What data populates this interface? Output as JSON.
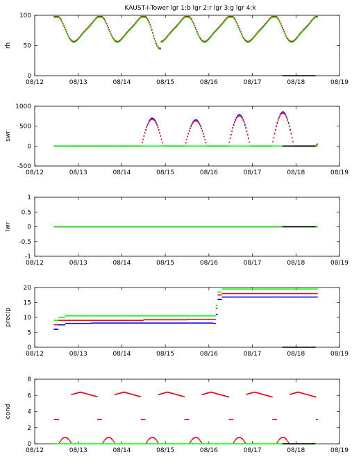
{
  "title": "KAUST-I-Tower  lgr 1:b lgr 2:r lgr 3:g lgr 4:k",
  "colors": {
    "lgr1": "#0000ff",
    "lgr2": "#ff0000",
    "lgr3": "#00ff00",
    "lgr4": "#000000"
  },
  "chart_data": [
    {
      "type": "scatter",
      "ylabel": "rh",
      "xlabel": "",
      "xlim": [
        "08/12",
        "08/19"
      ],
      "ylim": [
        0,
        100
      ],
      "xticks": [
        "08/12",
        "08/13",
        "08/14",
        "08/15",
        "08/16",
        "08/17",
        "08/18",
        "08/19"
      ],
      "yticks": [
        "0",
        "50",
        "100"
      ],
      "series": [
        {
          "color": "#0000ff",
          "kind": "diurnal_rh",
          "x_start": 0.45,
          "x_end": 6.5
        },
        {
          "color": "#ff0000",
          "kind": "diurnal_rh",
          "x_start": 0.45,
          "x_end": 6.5
        },
        {
          "color": "#00ff00",
          "kind": "diurnal_rh",
          "x_start": 0.45,
          "x_end": 6.5
        },
        {
          "color": "#000000",
          "kind": "constant",
          "value": 0,
          "x_start": 5.7,
          "x_end": 6.45
        }
      ]
    },
    {
      "type": "scatter",
      "ylabel": "swr",
      "xlabel": "",
      "xlim": [
        "08/12",
        "08/19"
      ],
      "ylim": [
        -500,
        1000
      ],
      "xticks": [
        "08/12",
        "08/13",
        "08/14",
        "08/15",
        "08/16",
        "08/17",
        "08/18",
        "08/19"
      ],
      "yticks": [
        "-500",
        "0",
        "500",
        "1000"
      ],
      "series": [
        {
          "color": "#0000ff",
          "kind": "diurnal_swr",
          "x_start": 0.45,
          "x_end": 6.5
        },
        {
          "color": "#ff0000",
          "kind": "diurnal_swr_late",
          "x_start": 0.45,
          "x_end": 6.5
        },
        {
          "color": "#00ff00",
          "kind": "constant",
          "value": 0,
          "x_start": 0.45,
          "x_end": 6.5
        },
        {
          "color": "#000000",
          "kind": "constant",
          "value": 0,
          "x_start": 5.7,
          "x_end": 6.45
        }
      ]
    },
    {
      "type": "scatter",
      "ylabel": "lwr",
      "xlabel": "",
      "xlim": [
        "08/12",
        "08/19"
      ],
      "ylim": [
        -1,
        1
      ],
      "xticks": [
        "08/12",
        "08/13",
        "08/14",
        "08/15",
        "08/16",
        "08/17",
        "08/18",
        "08/19"
      ],
      "yticks": [
        "-1",
        "-0.5",
        "0",
        "0.5",
        "1"
      ],
      "series": [
        {
          "color": "#0000ff",
          "kind": "constant",
          "value": 0,
          "x_start": 0.45,
          "x_end": 6.5
        },
        {
          "color": "#ff0000",
          "kind": "constant",
          "value": 0,
          "x_start": 0.45,
          "x_end": 6.5
        },
        {
          "color": "#00ff00",
          "kind": "constant",
          "value": 0,
          "x_start": 0.45,
          "x_end": 6.5
        },
        {
          "color": "#000000",
          "kind": "constant",
          "value": 0,
          "x_start": 5.7,
          "x_end": 6.45
        }
      ]
    },
    {
      "type": "scatter",
      "ylabel": "precip",
      "xlabel": "",
      "xlim": [
        "08/12",
        "08/19"
      ],
      "ylim": [
        0,
        20
      ],
      "xticks": [
        "08/12",
        "08/13",
        "08/14",
        "08/15",
        "08/16",
        "08/17",
        "08/18",
        "08/19"
      ],
      "yticks": [
        "0",
        "5",
        "10",
        "15",
        "20"
      ],
      "series": [
        {
          "color": "#0000ff",
          "kind": "steps",
          "steps": [
            [
              0.45,
              6.0
            ],
            [
              0.55,
              7.5
            ],
            [
              0.7,
              8.0
            ],
            [
              1.3,
              8.1
            ],
            [
              4.1,
              8.0
            ],
            [
              4.15,
              11.0
            ],
            [
              4.2,
              16.0
            ],
            [
              4.3,
              16.8
            ],
            [
              6.5,
              16.9
            ]
          ]
        },
        {
          "color": "#ff0000",
          "kind": "steps",
          "steps": [
            [
              0.45,
              7.5
            ],
            [
              0.55,
              9.0
            ],
            [
              1.5,
              9.0
            ],
            [
              2.5,
              9.2
            ],
            [
              3.5,
              9.3
            ],
            [
              4.1,
              9.3
            ],
            [
              4.15,
              13.0
            ],
            [
              4.2,
              17.5
            ],
            [
              4.3,
              18.0
            ],
            [
              6.5,
              18.2
            ]
          ]
        },
        {
          "color": "#00ff00",
          "kind": "steps",
          "steps": [
            [
              0.45,
              9.0
            ],
            [
              0.55,
              10.0
            ],
            [
              0.7,
              10.5
            ],
            [
              4.1,
              10.5
            ],
            [
              4.15,
              14.0
            ],
            [
              4.2,
              18.5
            ],
            [
              4.3,
              19.5
            ],
            [
              6.5,
              19.5
            ]
          ]
        },
        {
          "color": "#000000",
          "kind": "constant",
          "value": 0,
          "x_start": 5.7,
          "x_end": 6.45
        }
      ]
    },
    {
      "type": "scatter",
      "ylabel": "cond",
      "xlabel": "",
      "xlim": [
        "08/12",
        "08/19"
      ],
      "ylim": [
        0,
        8
      ],
      "xticks": [
        "08/12",
        "08/13",
        "08/14",
        "08/15",
        "08/16",
        "08/17",
        "08/18",
        "08/19"
      ],
      "yticks": [
        "0",
        "2",
        "4",
        "6",
        "8"
      ],
      "series": [
        {
          "color": "#0000ff",
          "kind": "diurnal_cond",
          "x_start": 0.45,
          "x_end": 6.5
        },
        {
          "color": "#ff0000",
          "kind": "diurnal_cond",
          "x_start": 0.45,
          "x_end": 6.5
        },
        {
          "color": "#00ff00",
          "kind": "constant",
          "value": 0,
          "x_start": 0.45,
          "x_end": 6.5
        },
        {
          "color": "#000000",
          "kind": "constant",
          "value": 0,
          "x_start": 5.7,
          "x_end": 6.45
        }
      ]
    }
  ]
}
